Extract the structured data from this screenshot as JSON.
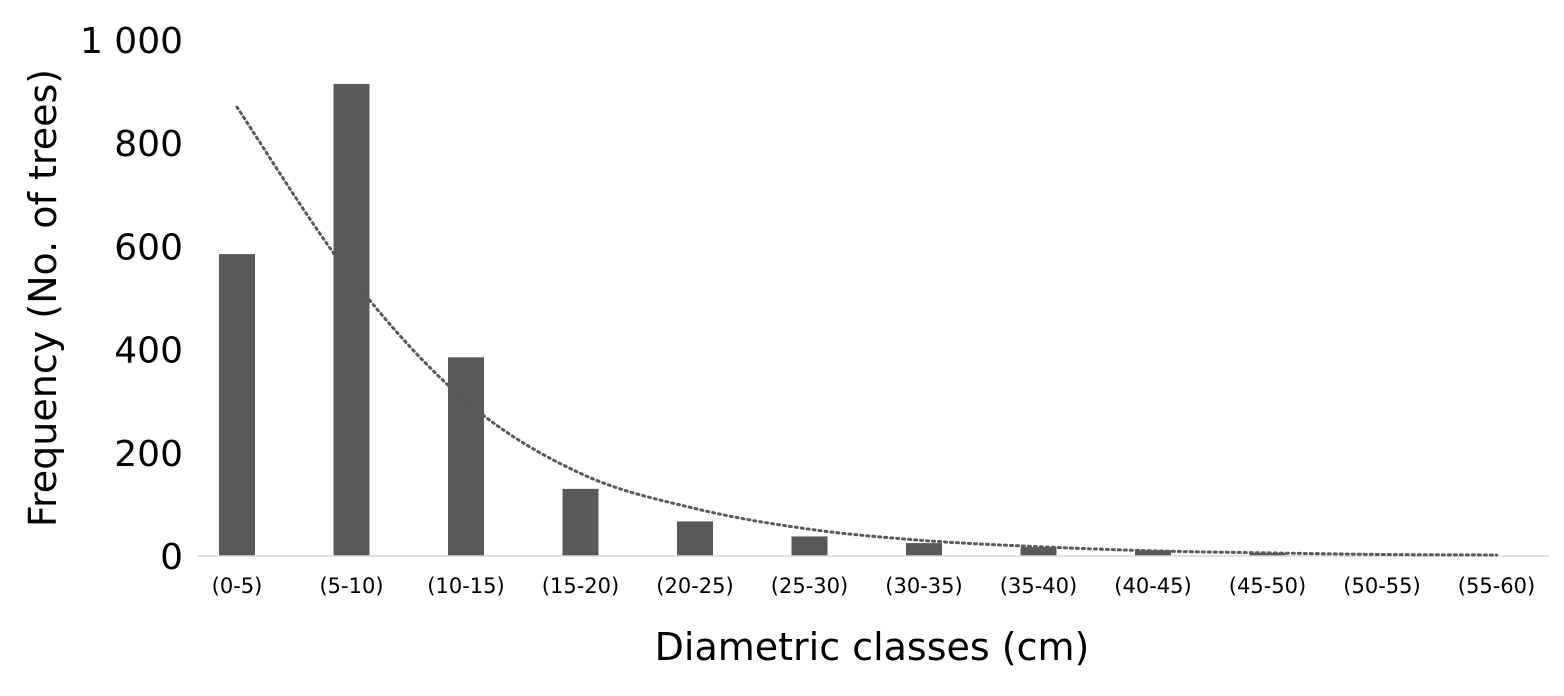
{
  "chart_data": {
    "type": "bar",
    "title": "",
    "xlabel": "Diametric classes (cm)",
    "ylabel": "Frequency (No. of trees)",
    "ylim": [
      0,
      1000
    ],
    "yticks": [
      0,
      200,
      400,
      600,
      800,
      1000
    ],
    "ytick_labels": [
      "0",
      "200",
      "400",
      "600",
      "800",
      "1 000"
    ],
    "categories": [
      "(0-5)",
      "(5-10)",
      "(10-15)",
      "(15-20)",
      "(20-25)",
      "(25-30)",
      "(30-35)",
      "(35-40)",
      "(40-45)",
      "(45-50)",
      "(50-55)",
      "(55-60)"
    ],
    "values": [
      585,
      915,
      385,
      130,
      67,
      38,
      25,
      17,
      11,
      6,
      0,
      0
    ],
    "trendline": {
      "type": "exponential",
      "style": "dotted",
      "values": [
        870,
        540,
        300,
        160,
        92,
        52,
        30,
        18,
        10,
        6,
        3,
        2
      ]
    },
    "grid": false,
    "legend": "none",
    "colors": {
      "bar": "#595959",
      "trendline": "#595959",
      "axis": "#d9d9d9"
    }
  }
}
